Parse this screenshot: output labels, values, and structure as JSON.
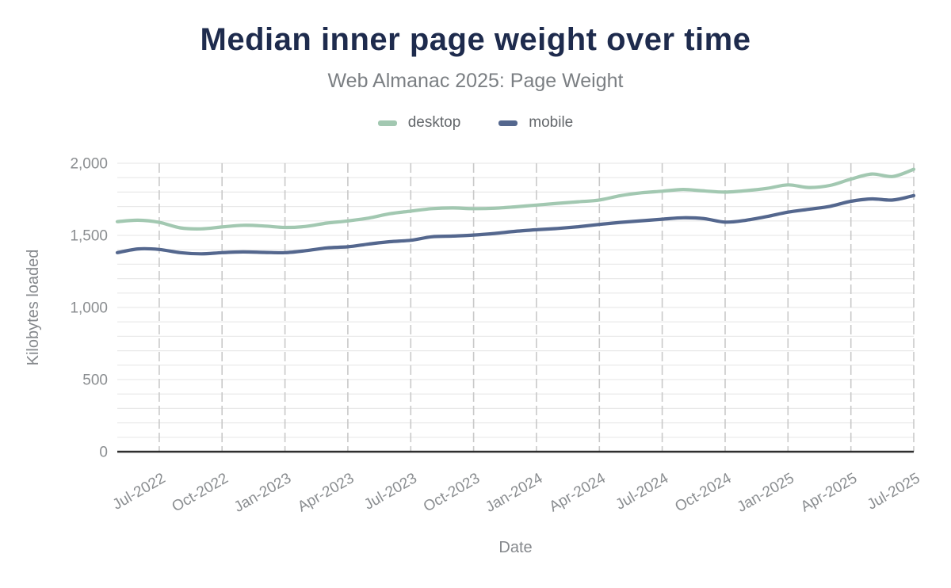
{
  "header": {
    "title": "Median inner page weight over time",
    "subtitle": "Web Almanac 2025: Page Weight"
  },
  "legend": {
    "items": [
      {
        "label": "desktop",
        "color": "#a2c8b1"
      },
      {
        "label": "mobile",
        "color": "#54678e"
      }
    ]
  },
  "colors": {
    "title": "#1e2b4d",
    "subtitle": "#7b7f83",
    "axis_text": "#8a8d90",
    "axis_title_text": "#85888c",
    "h_gridline": "#e9e9e9",
    "v_gridline": "#c9c9c9",
    "zero_axis": "#2e2e2e",
    "desktop_line": "#a2c8b1",
    "mobile_line": "#54678e"
  },
  "chart_data": {
    "type": "line",
    "title": "Median inner page weight over time",
    "subtitle": "Web Almanac 2025: Page Weight",
    "xlabel": "Date",
    "ylabel": "Kilobytes loaded",
    "ylim": [
      0,
      2000
    ],
    "yticks": [
      0,
      500,
      1000,
      1500,
      2000
    ],
    "ytick_labels": [
      "0",
      "500",
      "1,000",
      "1,500",
      "2,000"
    ],
    "grid": "on",
    "legend_position": "top-center",
    "x": [
      "May-2022",
      "Jun-2022",
      "Jul-2022",
      "Aug-2022",
      "Sep-2022",
      "Oct-2022",
      "Nov-2022",
      "Dec-2022",
      "Jan-2023",
      "Feb-2023",
      "Mar-2023",
      "Apr-2023",
      "May-2023",
      "Jun-2023",
      "Jul-2023",
      "Aug-2023",
      "Sep-2023",
      "Oct-2023",
      "Nov-2023",
      "Dec-2023",
      "Jan-2024",
      "Feb-2024",
      "Mar-2024",
      "Apr-2024",
      "May-2024",
      "Jun-2024",
      "Jul-2024",
      "Aug-2024",
      "Sep-2024",
      "Oct-2024",
      "Nov-2024",
      "Dec-2024",
      "Jan-2025",
      "Feb-2025",
      "Mar-2025",
      "Apr-2025",
      "May-2025",
      "Jun-2025",
      "Jul-2025"
    ],
    "xtick_shown_every": 3,
    "xtick_first_index": 2,
    "xtick_labels_shown": [
      "Jul-2022",
      "Oct-2022",
      "Jan-2023",
      "Apr-2023",
      "Jul-2023",
      "Oct-2023",
      "Jan-2024",
      "Apr-2024",
      "Jul-2024",
      "Oct-2024",
      "Jan-2025",
      "Apr-2025",
      "Jul-2025"
    ],
    "series": [
      {
        "name": "desktop",
        "color": "#a2c8b1",
        "values": [
          1595,
          1605,
          1590,
          1552,
          1545,
          1558,
          1570,
          1565,
          1555,
          1562,
          1585,
          1600,
          1620,
          1650,
          1668,
          1685,
          1690,
          1685,
          1688,
          1698,
          1710,
          1722,
          1733,
          1745,
          1775,
          1795,
          1806,
          1818,
          1808,
          1800,
          1810,
          1826,
          1850,
          1832,
          1846,
          1890,
          1925,
          1908,
          1958
        ]
      },
      {
        "name": "mobile",
        "color": "#54678e",
        "values": [
          1380,
          1406,
          1402,
          1380,
          1372,
          1380,
          1385,
          1382,
          1380,
          1394,
          1413,
          1421,
          1440,
          1456,
          1466,
          1490,
          1495,
          1502,
          1513,
          1528,
          1539,
          1548,
          1560,
          1576,
          1590,
          1601,
          1612,
          1622,
          1616,
          1592,
          1605,
          1631,
          1661,
          1681,
          1701,
          1736,
          1753,
          1745,
          1776
        ]
      }
    ]
  }
}
